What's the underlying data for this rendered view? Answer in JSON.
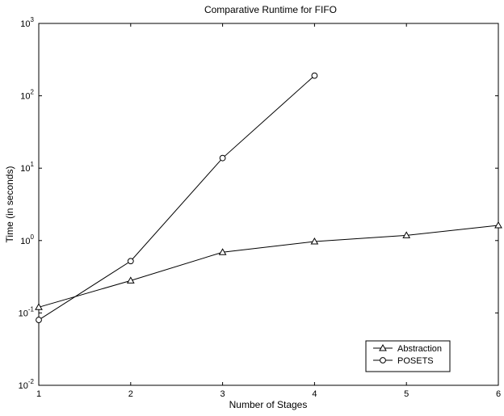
{
  "chart_data": {
    "type": "line",
    "title": "Comparative Runtime for FIFO",
    "xlabel": "Number of Stages",
    "ylabel": "Time (in seconds)",
    "x_scale": "linear",
    "y_scale": "log",
    "xlim": [
      1,
      6
    ],
    "ylim": [
      0.01,
      1000
    ],
    "x_ticks": [
      1,
      2,
      3,
      4,
      5,
      6
    ],
    "x_tick_labels": [
      "1",
      "2",
      "3",
      "4",
      "5",
      "6"
    ],
    "y_ticks": [
      {
        "value": 0.01,
        "base": "10",
        "exp": "-2"
      },
      {
        "value": 0.1,
        "base": "10",
        "exp": "-1"
      },
      {
        "value": 1,
        "base": "10",
        "exp": "0"
      },
      {
        "value": 10,
        "base": "10",
        "exp": "1"
      },
      {
        "value": 100,
        "base": "10",
        "exp": "2"
      },
      {
        "value": 1000,
        "base": "10",
        "exp": "3"
      }
    ],
    "grid": false,
    "legend_position": "bottom-right",
    "series": [
      {
        "name": "Abstraction",
        "marker": "triangle",
        "color": "#000000",
        "x": [
          1,
          2,
          3,
          4,
          5,
          6
        ],
        "y": [
          0.12,
          0.28,
          0.69,
          0.97,
          1.18,
          1.62
        ]
      },
      {
        "name": "POSETS",
        "marker": "circle",
        "color": "#000000",
        "x": [
          1,
          2,
          3,
          4
        ],
        "y": [
          0.08,
          0.52,
          13.8,
          190
        ]
      }
    ]
  }
}
